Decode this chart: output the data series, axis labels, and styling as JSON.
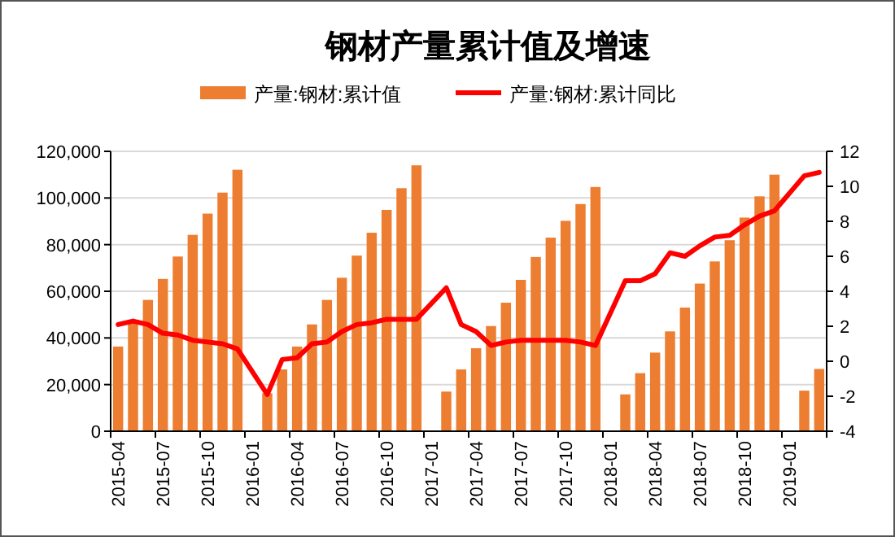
{
  "chart_data": {
    "type": "bar",
    "title": "钢材产量累计值及增速",
    "categories": [
      "2015-04",
      null,
      null,
      "2015-07",
      null,
      null,
      "2015-10",
      null,
      null,
      "2016-01",
      null,
      null,
      "2016-04",
      null,
      null,
      "2016-07",
      null,
      null,
      "2016-10",
      null,
      null,
      "2017-01",
      null,
      null,
      "2017-04",
      null,
      null,
      "2017-07",
      null,
      null,
      "2017-10",
      null,
      null,
      "2018-01",
      null,
      null,
      "2018-04",
      null,
      null,
      "2018-07",
      null,
      null,
      "2018-10",
      null,
      null,
      "2019-01",
      null,
      null
    ],
    "series": [
      {
        "name": "产量:钢材:累计值",
        "color": "#ed7d31",
        "values": [
          36300,
          46500,
          56300,
          65300,
          74900,
          84200,
          93300,
          102300,
          112100,
          null,
          16300,
          26500,
          36300,
          45800,
          56300,
          65800,
          75300,
          85100,
          94900,
          104200,
          114000,
          null,
          17000,
          26500,
          35600,
          45100,
          55100,
          64900,
          74700,
          83000,
          90200,
          97400,
          104700,
          null,
          15800,
          24900,
          33700,
          42800,
          53000,
          63300,
          72800,
          81900,
          91600,
          100700,
          110000,
          null,
          17400,
          26700
        ]
      },
      {
        "name": "产量:钢材:累计同比",
        "type": "line",
        "axis": "y2",
        "color": "#ff0000",
        "values": [
          2.1,
          2.3,
          2.1,
          1.6,
          1.5,
          1.2,
          1.1,
          1.0,
          0.7,
          null,
          -1.9,
          0.1,
          0.2,
          1.0,
          1.1,
          1.7,
          2.1,
          2.2,
          2.4,
          2.4,
          2.4,
          null,
          4.2,
          2.1,
          1.7,
          0.9,
          1.1,
          1.2,
          1.2,
          1.2,
          1.2,
          1.1,
          0.9,
          null,
          4.6,
          4.6,
          5.0,
          6.2,
          6.0,
          6.6,
          7.1,
          7.2,
          7.8,
          8.3,
          8.6,
          null,
          10.6,
          10.8
        ]
      }
    ],
    "ylim": [
      0,
      120000
    ],
    "yticks": [
      0,
      {
        "value": 20000,
        "label": "20,000"
      },
      {
        "value": 40000,
        "label": "40,000"
      },
      {
        "value": 60000,
        "label": "60,000"
      },
      {
        "value": 80000,
        "label": "80,000"
      },
      {
        "value": 100000,
        "label": "100,000"
      },
      {
        "value": 120000,
        "label": "120,000"
      }
    ],
    "y2lim": [
      -4,
      12
    ],
    "y2ticks": [
      -4,
      -2,
      0,
      2,
      4,
      6,
      8,
      10,
      12
    ],
    "grid": "y",
    "legend": "top",
    "marker": "none",
    "line_style": "solid"
  }
}
